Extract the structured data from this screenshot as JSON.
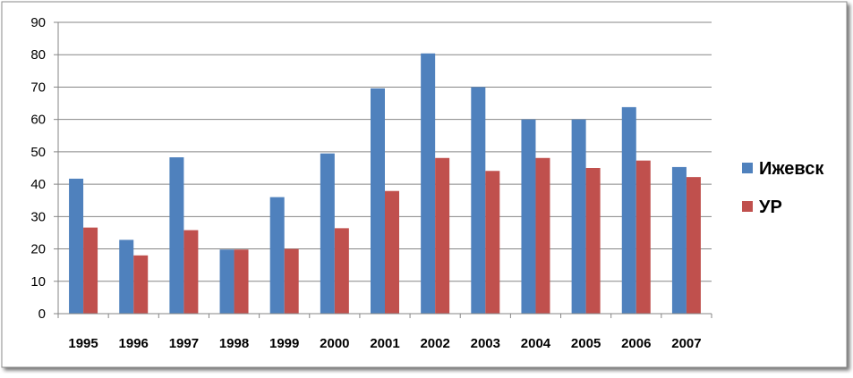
{
  "chart_data": {
    "type": "bar",
    "categories": [
      "1995",
      "1996",
      "1997",
      "1998",
      "1999",
      "2000",
      "2001",
      "2002",
      "2003",
      "2004",
      "2005",
      "2006",
      "2007"
    ],
    "series": [
      {
        "name": "Ижевск",
        "color": "#4f81bd",
        "values": [
          41.7,
          22.8,
          48.3,
          19.8,
          36,
          49.5,
          69.6,
          80.4,
          70,
          60,
          60,
          63.8,
          45.3
        ]
      },
      {
        "name": "УР",
        "color": "#c0504d",
        "values": [
          26.6,
          18,
          25.8,
          19.8,
          20,
          26.4,
          37.9,
          48.1,
          44.1,
          48.1,
          45,
          47.3,
          42.2
        ]
      }
    ],
    "yticks": [
      "0",
      "10",
      "20",
      "30",
      "40",
      "50",
      "60",
      "70",
      "80",
      "90"
    ],
    "ylim": [
      0,
      90
    ],
    "grid": true,
    "legend_position": "right",
    "title": "",
    "xlabel": "",
    "ylabel": ""
  }
}
